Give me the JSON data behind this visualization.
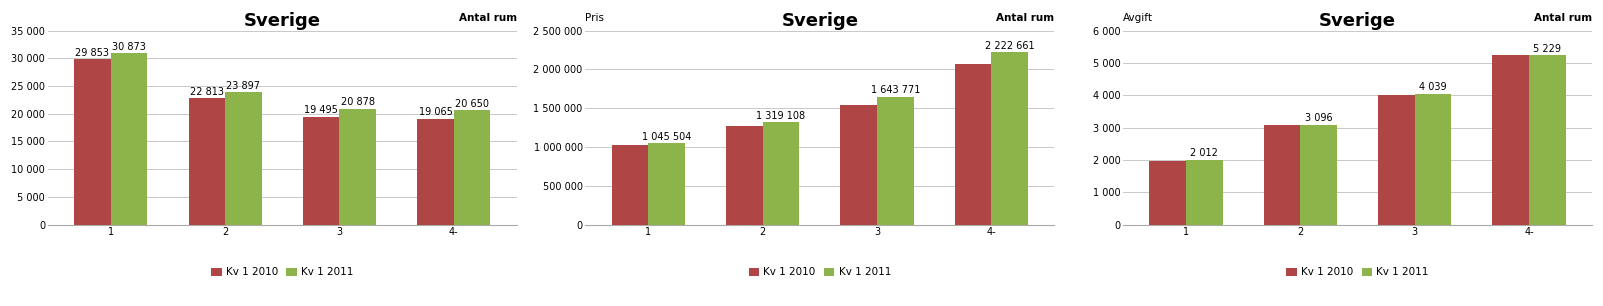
{
  "charts": [
    {
      "title": "Sverige",
      "ylabel_topleft": "",
      "ylabel_topright": "Antal rum",
      "categories": [
        "1",
        "2",
        "3",
        "4-"
      ],
      "kv2010": [
        29853,
        22813,
        19495,
        19065
      ],
      "kv2011": [
        30873,
        23897,
        20878,
        20650
      ],
      "ylim": [
        0,
        35000
      ],
      "yticks": [
        0,
        5000,
        10000,
        15000,
        20000,
        25000,
        30000,
        35000
      ],
      "ytick_labels": [
        "0",
        "5 000",
        "10 000",
        "15 000",
        "20 000",
        "25 000",
        "30 000",
        "35 000"
      ],
      "bar_labels_2010": [
        "29 853",
        "22 813",
        "19 495",
        "19 065"
      ],
      "bar_labels_2011": [
        "30 873",
        "23 897",
        "20 878",
        "20 650"
      ]
    },
    {
      "title": "Sverige",
      "ylabel_topleft": "Pris",
      "ylabel_topright": "Antal rum",
      "categories": [
        "1",
        "2",
        "3",
        "4-"
      ],
      "kv2010": [
        1020000,
        1270000,
        1540000,
        2065000
      ],
      "kv2011": [
        1045504,
        1319108,
        1643771,
        2222661
      ],
      "ylim": [
        0,
        2500000
      ],
      "yticks": [
        0,
        500000,
        1000000,
        1500000,
        2000000,
        2500000
      ],
      "ytick_labels": [
        "0",
        "500 000",
        "1 000 000",
        "1 500 000",
        "2 000 000",
        "2 500 000"
      ],
      "bar_labels_2010": [
        "",
        "",
        "",
        ""
      ],
      "bar_labels_2011": [
        "1 045 504",
        "1 319 108",
        "1 643 771",
        "2 222 661"
      ]
    },
    {
      "title": "Sverige",
      "ylabel_topleft": "Avgift",
      "ylabel_topright": "Antal rum",
      "categories": [
        "1",
        "2",
        "3",
        "4-"
      ],
      "kv2010": [
        1980,
        3080,
        4020,
        5230
      ],
      "kv2011": [
        2012,
        3096,
        4039,
        5229
      ],
      "ylim": [
        0,
        6000
      ],
      "yticks": [
        0,
        1000,
        2000,
        3000,
        4000,
        5000,
        6000
      ],
      "ytick_labels": [
        "0",
        "1 000",
        "2 000",
        "3 000",
        "4 000",
        "5 000",
        "6 000"
      ],
      "bar_labels_2010": [
        "",
        "",
        "",
        ""
      ],
      "bar_labels_2011": [
        "2 012",
        "3 096",
        "4 039",
        "5 229"
      ]
    }
  ],
  "color_2010": "#b04545",
  "color_2011": "#8db44a",
  "legend_labels": [
    "Kv 1 2010",
    "Kv 1 2011"
  ],
  "bg_color": "#ffffff",
  "plot_bg_color": "#ffffff",
  "grid_color": "#c0c0c0",
  "title_fontsize": 13,
  "label_fontsize": 7,
  "tick_fontsize": 7,
  "legend_fontsize": 7.5,
  "bar_width": 0.32
}
